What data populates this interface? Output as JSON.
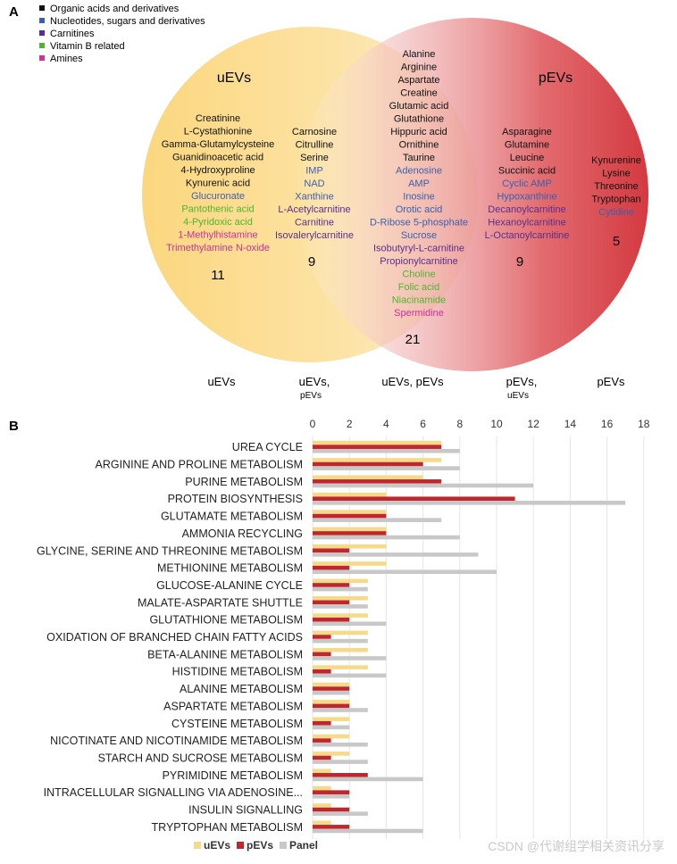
{
  "colors": {
    "organic": "#111111",
    "nucleotide": "#3b5fb0",
    "carnitine": "#5b2d8c",
    "vitamin": "#4fb52f",
    "amine": "#d0309a",
    "uEVs": "#f7d98a",
    "pEVs": "#c0262e",
    "Panel": "#c8c8c8"
  },
  "venn": {
    "panel_label": "A",
    "legend": [
      {
        "label": "Organic acids and derivatives",
        "cat": "organic"
      },
      {
        "label": "Nucleotides, sugars and derivatives",
        "cat": "nucleotide"
      },
      {
        "label": "Carnitines",
        "cat": "carnitine"
      },
      {
        "label": "Vitamin B related",
        "cat": "vitamin"
      },
      {
        "label": "Amines",
        "cat": "amine"
      }
    ],
    "left_title": "uEVs",
    "right_title": "pEVs",
    "groups": {
      "u_only": {
        "count": "11",
        "items": [
          {
            "t": "Creatinine",
            "c": "organic"
          },
          {
            "t": "L-Cystathionine",
            "c": "organic"
          },
          {
            "t": "Gamma-Glutamylcysteine",
            "c": "organic"
          },
          {
            "t": "Guanidinoacetic acid",
            "c": "organic"
          },
          {
            "t": "4-Hydroxyproline",
            "c": "organic"
          },
          {
            "t": "Kynurenic acid",
            "c": "organic"
          },
          {
            "t": "Glucuronate",
            "c": "nucleotide"
          },
          {
            "t": "Pantothenic acid",
            "c": "vitamin"
          },
          {
            "t": "4-Pyridoxic acid",
            "c": "vitamin"
          },
          {
            "t": "1-Methylhistamine",
            "c": "amine"
          },
          {
            "t": "Trimethylamine N-oxide",
            "c": "amine"
          }
        ]
      },
      "u_main": {
        "count": "9",
        "items": [
          {
            "t": "Carnosine",
            "c": "organic"
          },
          {
            "t": "Citrulline",
            "c": "organic"
          },
          {
            "t": "Serine",
            "c": "organic"
          },
          {
            "t": "IMP",
            "c": "nucleotide"
          },
          {
            "t": "NAD",
            "c": "nucleotide"
          },
          {
            "t": "Xanthine",
            "c": "nucleotide"
          },
          {
            "t": "L-Acetylcarnitine",
            "c": "carnitine"
          },
          {
            "t": "Carnitine",
            "c": "carnitine"
          },
          {
            "t": "Isovalerylcarnitine",
            "c": "carnitine"
          }
        ]
      },
      "both": {
        "count": "21",
        "items": [
          {
            "t": "Alanine",
            "c": "organic"
          },
          {
            "t": "Arginine",
            "c": "organic"
          },
          {
            "t": "Aspartate",
            "c": "organic"
          },
          {
            "t": "Creatine",
            "c": "organic"
          },
          {
            "t": "Glutamic acid",
            "c": "organic"
          },
          {
            "t": "Glutathione",
            "c": "organic"
          },
          {
            "t": "Hippuric acid",
            "c": "organic"
          },
          {
            "t": "Ornithine",
            "c": "organic"
          },
          {
            "t": "Taurine",
            "c": "organic"
          },
          {
            "t": "Adenosine",
            "c": "nucleotide"
          },
          {
            "t": "AMP",
            "c": "nucleotide"
          },
          {
            "t": "Inosine",
            "c": "nucleotide"
          },
          {
            "t": "Orotic acid",
            "c": "nucleotide"
          },
          {
            "t": "D-Ribose 5-phosphate",
            "c": "nucleotide"
          },
          {
            "t": "Sucrose",
            "c": "nucleotide"
          },
          {
            "t": "Isobutyryl-L-carnitine",
            "c": "carnitine"
          },
          {
            "t": "Propionylcarnitine",
            "c": "carnitine"
          },
          {
            "t": "Choline",
            "c": "vitamin"
          },
          {
            "t": "Folic acid",
            "c": "vitamin"
          },
          {
            "t": "Niacinamide",
            "c": "vitamin"
          },
          {
            "t": "Spermidine",
            "c": "amine"
          }
        ]
      },
      "p_main": {
        "count": "9",
        "items": [
          {
            "t": "Asparagine",
            "c": "organic"
          },
          {
            "t": "Glutamine",
            "c": "organic"
          },
          {
            "t": "Leucine",
            "c": "organic"
          },
          {
            "t": "Succinic acid",
            "c": "organic"
          },
          {
            "t": "Cyclic AMP",
            "c": "nucleotide"
          },
          {
            "t": "Hypoxanthine",
            "c": "nucleotide"
          },
          {
            "t": "Decanoylcarnitine",
            "c": "carnitine"
          },
          {
            "t": "Hexanoylcarnitine",
            "c": "carnitine"
          },
          {
            "t": "L-Octanoylcarnitine",
            "c": "carnitine"
          }
        ]
      },
      "p_only": {
        "count": "5",
        "items": [
          {
            "t": "Kynurenine",
            "c": "organic"
          },
          {
            "t": "Lysine",
            "c": "organic"
          },
          {
            "t": "Threonine",
            "c": "organic"
          },
          {
            "t": "Tryptophan",
            "c": "organic"
          },
          {
            "t": "Cytidine",
            "c": "nucleotide"
          }
        ]
      }
    },
    "bottom_labels": {
      "uEVs": "uEVs",
      "uEVs_pEVs_a": "uEVs,",
      "uEVs_pEVs_b": "pEVs",
      "both": "uEVs, pEVs",
      "pEVs_uEVs_a": "pEVs,",
      "pEVs_uEVs_b": "uEVs",
      "pEVs": "pEVs"
    }
  },
  "chart_data": {
    "type": "bar",
    "orientation": "horizontal",
    "panel_label": "B",
    "title": "",
    "xlabel": "",
    "ylabel": "",
    "xlim": [
      0,
      18
    ],
    "xticks": [
      0,
      2,
      4,
      6,
      8,
      10,
      12,
      14,
      16,
      18
    ],
    "grid": true,
    "legend_position": "bottom",
    "categories": [
      "UREA CYCLE",
      "ARGININE AND PROLINE METABOLISM",
      "PURINE METABOLISM",
      "PROTEIN BIOSYNTHESIS",
      "GLUTAMATE METABOLISM",
      "AMMONIA RECYCLING",
      "GLYCINE, SERINE AND THREONINE METABOLISM",
      "METHIONINE METABOLISM",
      "GLUCOSE-ALANINE CYCLE",
      "MALATE-ASPARTATE SHUTTLE",
      "GLUTATHIONE METABOLISM",
      "OXIDATION OF BRANCHED CHAIN FATTY ACIDS",
      "BETA-ALANINE METABOLISM",
      "HISTIDINE METABOLISM",
      "ALANINE METABOLISM",
      "ASPARTATE METABOLISM",
      "CYSTEINE METABOLISM",
      "NICOTINATE AND NICOTINAMIDE METABOLISM",
      "STARCH AND SUCROSE METABOLISM",
      "PYRIMIDINE METABOLISM",
      "INTRACELLULAR SIGNALLING VIA ADENOSINE...",
      "INSULIN SIGNALLING",
      "TRYPTOPHAN METABOLISM"
    ],
    "series": [
      {
        "name": "uEVs",
        "values": [
          7,
          7,
          6,
          4,
          4,
          4,
          4,
          4,
          3,
          3,
          3,
          3,
          3,
          3,
          2,
          2,
          2,
          2,
          2,
          1,
          1,
          1,
          1
        ]
      },
      {
        "name": "pEVs",
        "values": [
          7,
          6,
          7,
          11,
          4,
          4,
          2,
          2,
          2,
          2,
          2,
          1,
          1,
          1,
          2,
          2,
          1,
          1,
          1,
          3,
          2,
          2,
          2
        ]
      },
      {
        "name": "Panel",
        "values": [
          8,
          8,
          12,
          17,
          7,
          8,
          9,
          10,
          3,
          3,
          4,
          3,
          4,
          4,
          2,
          3,
          2,
          3,
          3,
          6,
          2,
          3,
          6
        ]
      }
    ]
  },
  "watermark": "CSDN @代谢组学相关资讯分享"
}
